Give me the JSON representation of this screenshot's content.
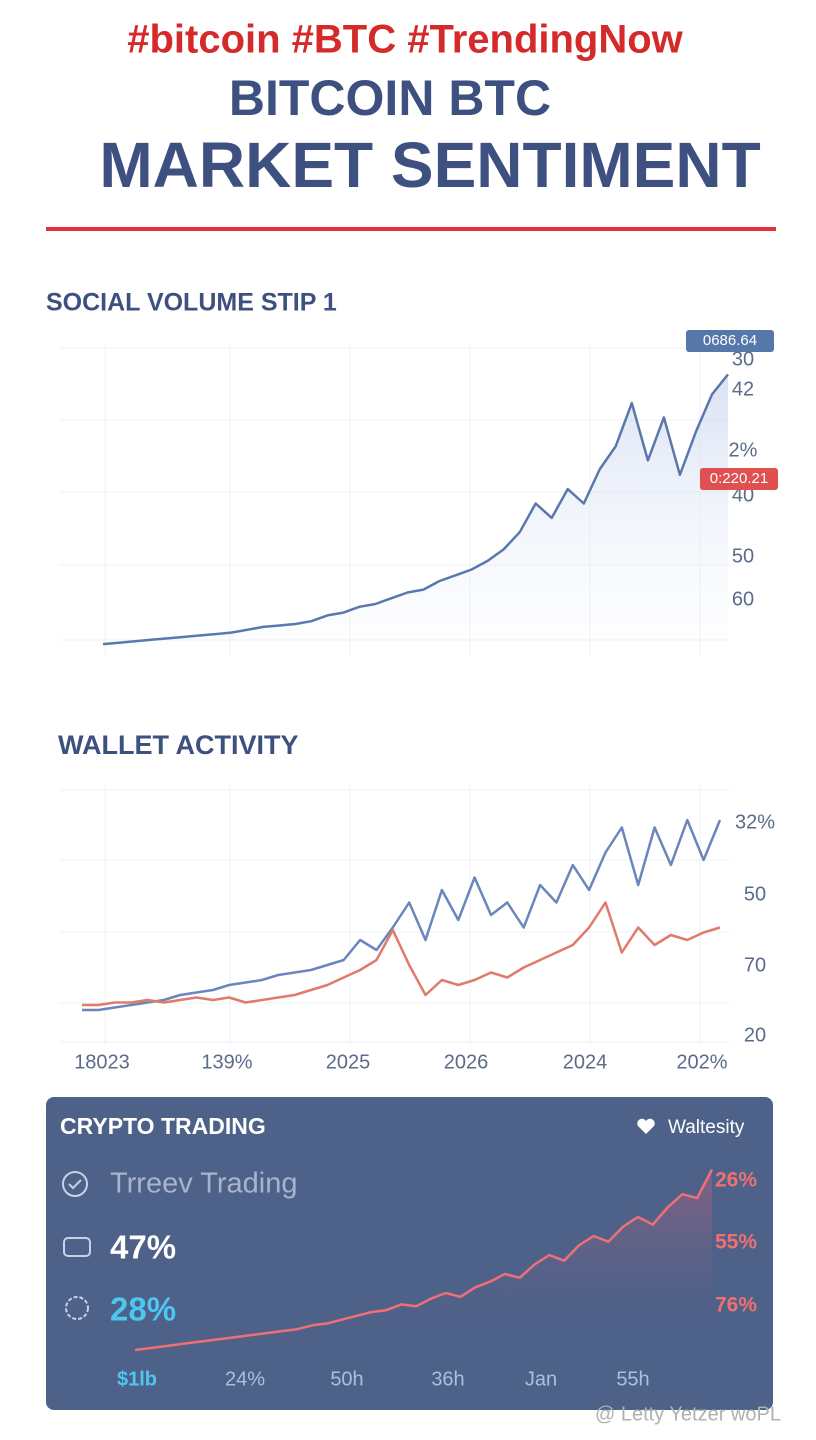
{
  "header": {
    "hashtags": "#bitcoin #BTC #TrendingNow",
    "title_line1": "BITCOIN BTC",
    "title_line2": "MARKET SENTIMENT"
  },
  "social_chart": {
    "type": "line",
    "title": "SOCIAL VOLUME STIP 1",
    "axis_labels": [
      "30",
      "42",
      "2%",
      "40",
      "50",
      "60"
    ],
    "badges": [
      "0686.64",
      "0:220.21"
    ],
    "ylim": [
      0,
      100
    ],
    "series": [
      {
        "color": "#5a78ad",
        "values": [
          1,
          1.5,
          2,
          2.5,
          3,
          3.5,
          4,
          4.5,
          5,
          6,
          7,
          7.5,
          8,
          9,
          11,
          12,
          14,
          15,
          17,
          19,
          20,
          23,
          25,
          27,
          30,
          34,
          40,
          50,
          45,
          55,
          50,
          62,
          70,
          85,
          65,
          80,
          60,
          75,
          88,
          95
        ]
      }
    ]
  },
  "wallet_chart": {
    "type": "line",
    "title": "WALLET ACTIVITY",
    "axis_labels": [
      "32%",
      "50",
      "70",
      "20"
    ],
    "x_labels": [
      "18023",
      "139%",
      "2025",
      "2026",
      "2024",
      "202%"
    ],
    "ylim": [
      0,
      100
    ],
    "series": [
      {
        "color": "#6a86bb",
        "values": [
          12,
          12,
          13,
          14,
          15,
          16,
          18,
          19,
          20,
          22,
          23,
          24,
          26,
          27,
          28,
          30,
          32,
          40,
          36,
          45,
          55,
          40,
          60,
          48,
          65,
          50,
          55,
          45,
          62,
          55,
          70,
          60,
          75,
          85,
          62,
          85,
          70,
          88,
          72,
          88
        ]
      },
      {
        "color": "#e07a6a",
        "values": [
          14,
          14,
          15,
          15,
          16,
          15,
          16,
          17,
          16,
          17,
          15,
          16,
          17,
          18,
          20,
          22,
          25,
          28,
          32,
          44,
          30,
          18,
          24,
          22,
          24,
          27,
          25,
          29,
          32,
          35,
          38,
          45,
          55,
          35,
          45,
          38,
          42,
          40,
          43,
          45
        ]
      }
    ]
  },
  "trading_panel": {
    "type": "line",
    "title": "CRYPTO TRADING",
    "legend": "Waltesity",
    "item1": "Trreev Trading",
    "stat1": "47%",
    "stat2": "28%",
    "right_labels": [
      "26%",
      "55%",
      "76%"
    ],
    "x_labels": [
      "$1lb",
      "24%",
      "50h",
      "36h",
      "Jan",
      "55h"
    ],
    "ylim": [
      0,
      100
    ],
    "series": [
      {
        "color": "#ef6f78",
        "values": [
          0,
          1,
          2,
          3,
          4,
          5,
          6,
          7,
          8,
          9,
          10,
          11,
          13,
          14,
          16,
          18,
          20,
          21,
          24,
          23,
          27,
          30,
          28,
          33,
          36,
          40,
          38,
          45,
          50,
          47,
          55,
          60,
          57,
          65,
          70,
          66,
          75,
          82,
          80,
          95
        ]
      }
    ]
  },
  "watermark": "@ Letty Yetzer woPL"
}
